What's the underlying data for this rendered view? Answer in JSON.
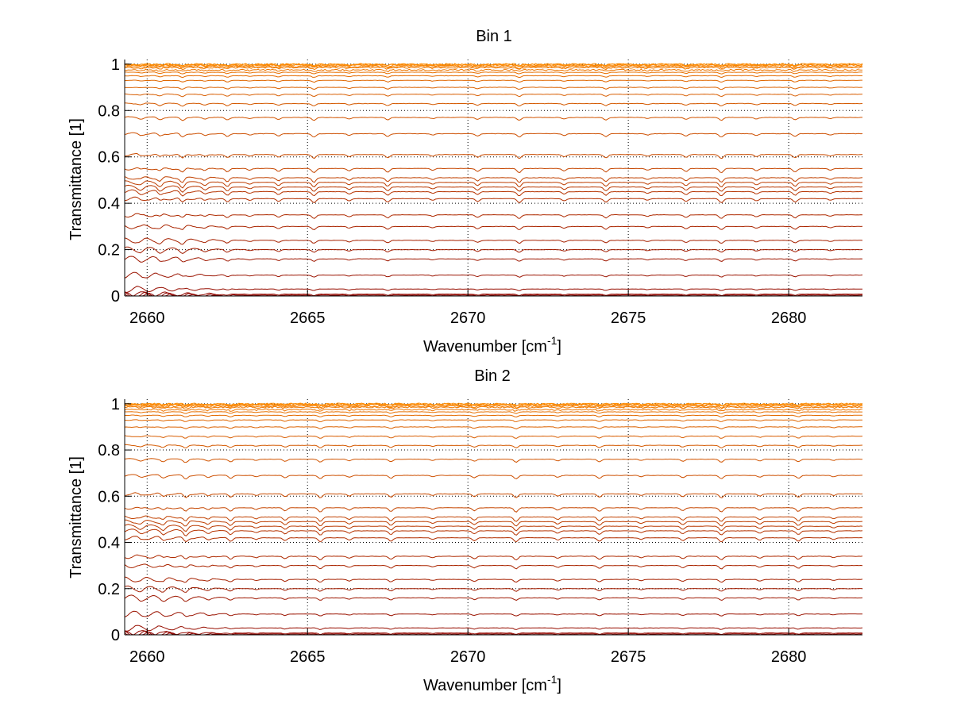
{
  "figure": {
    "background": "#ffffff",
    "grid_color": "#000000",
    "grid_style": "dotted",
    "line_color_low": "#8B0000",
    "line_color_high": "#FF8C00"
  },
  "chart_data": [
    {
      "type": "line",
      "title": "Bin 1",
      "xlabel": "Wavenumber [cm",
      "xlabel_sup": "-1",
      "xlabel_suffix": "]",
      "ylabel": "Transmittance [1]",
      "xlim": [
        2659.3,
        2682.3
      ],
      "ylim": [
        0,
        1.02
      ],
      "xticks": [
        2660,
        2665,
        2670,
        2675,
        2680
      ],
      "yticks": [
        0,
        0.2,
        0.4,
        0.6,
        0.8,
        1
      ],
      "ytick_labels": [
        "0",
        "0.2",
        "0.4",
        "0.6",
        "0.8",
        "1"
      ],
      "xtick_labels": [
        "2660",
        "2665",
        "2670",
        "2675",
        "2680"
      ],
      "grid": true,
      "series_levels": [
        0.0,
        0.004,
        0.008,
        0.03,
        0.09,
        0.16,
        0.2,
        0.24,
        0.3,
        0.35,
        0.42,
        0.45,
        0.47,
        0.49,
        0.51,
        0.55,
        0.61,
        0.7,
        0.77,
        0.83,
        0.87,
        0.9,
        0.93,
        0.95,
        0.965,
        0.975,
        0.985,
        0.99,
        0.995,
        0.998,
        1.0
      ],
      "absorption_lines": [
        2659.8,
        2660.4,
        2661.1,
        2661.8,
        2662.5,
        2663.2,
        2664.1,
        2665.2,
        2666.3,
        2667.5,
        2668.9,
        2670.3,
        2671.6,
        2673.0,
        2674.3,
        2675.6,
        2676.8,
        2677.9,
        2679.0,
        2680.2,
        2681.3
      ]
    },
    {
      "type": "line",
      "title": "Bin 2",
      "xlabel": "Wavenumber [cm",
      "xlabel_sup": "-1",
      "xlabel_suffix": "]",
      "ylabel": "Transmittance [1]",
      "xlim": [
        2659.3,
        2682.3
      ],
      "ylim": [
        0,
        1.02
      ],
      "xticks": [
        2660,
        2665,
        2670,
        2675,
        2680
      ],
      "yticks": [
        0,
        0.2,
        0.4,
        0.6,
        0.8,
        1
      ],
      "ytick_labels": [
        "0",
        "0.2",
        "0.4",
        "0.6",
        "0.8",
        "1"
      ],
      "xtick_labels": [
        "2660",
        "2665",
        "2670",
        "2675",
        "2680"
      ],
      "grid": true,
      "series_levels": [
        0.0,
        0.004,
        0.008,
        0.03,
        0.09,
        0.16,
        0.2,
        0.24,
        0.3,
        0.34,
        0.42,
        0.45,
        0.47,
        0.49,
        0.51,
        0.55,
        0.61,
        0.69,
        0.76,
        0.82,
        0.86,
        0.9,
        0.93,
        0.95,
        0.965,
        0.975,
        0.985,
        0.99,
        0.995,
        0.998,
        1.0
      ],
      "absorption_lines": [
        2659.8,
        2660.5,
        2661.2,
        2661.9,
        2662.6,
        2663.4,
        2664.3,
        2665.4,
        2666.3,
        2667.6,
        2668.9,
        2670.2,
        2671.5,
        2672.8,
        2674.1,
        2675.4,
        2676.7,
        2677.9,
        2679.1,
        2680.3,
        2681.4
      ]
    }
  ]
}
